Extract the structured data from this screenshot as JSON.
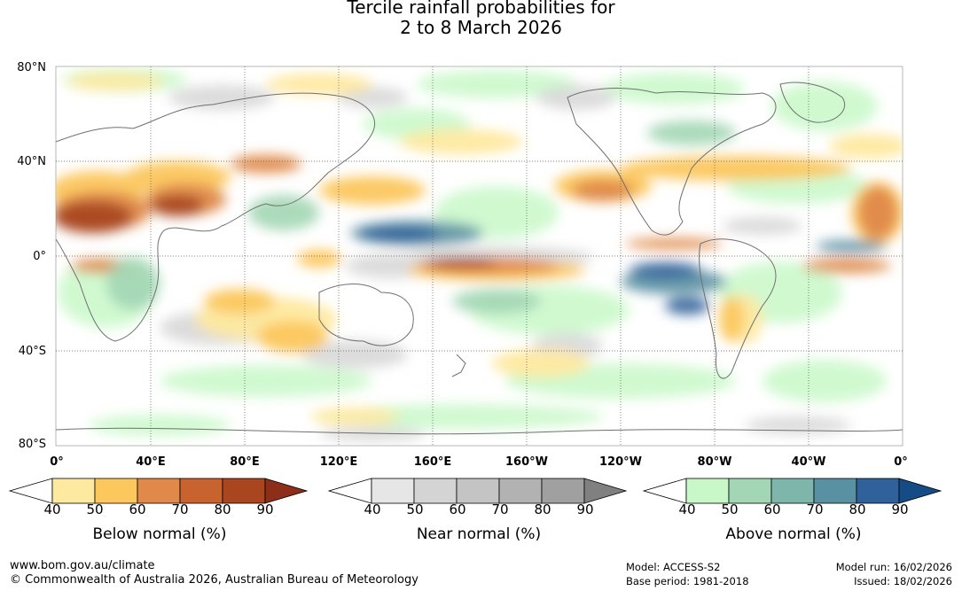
{
  "title": {
    "line1": "Tercile rainfall probabilities for",
    "line2": "2 to 8 March 2026"
  },
  "map": {
    "lat_labels": [
      "80°N",
      "40°N",
      "0°",
      "40°S",
      "80°S"
    ],
    "lon_labels": [
      "0°",
      "40°E",
      "80°E",
      "120°E",
      "160°E",
      "160°W",
      "120°W",
      "80°W",
      "40°W",
      "0°"
    ]
  },
  "colorbars": [
    {
      "title": "Below normal (%)",
      "ticks": [
        "40",
        "50",
        "60",
        "70",
        "80",
        "90"
      ],
      "colors": [
        "#ffffff",
        "#fee9a0",
        "#fcc75c",
        "#e0894a",
        "#c8622f",
        "#a9461f",
        "#8c2e1a"
      ]
    },
    {
      "title": "Near normal (%)",
      "ticks": [
        "40",
        "50",
        "60",
        "70",
        "80",
        "90"
      ],
      "colors": [
        "#ffffff",
        "#e6e6e6",
        "#d4d4d4",
        "#c4c4c4",
        "#b2b2b2",
        "#a0a0a0",
        "#808080"
      ]
    },
    {
      "title": "Above normal (%)",
      "ticks": [
        "40",
        "50",
        "60",
        "70",
        "80",
        "90"
      ],
      "colors": [
        "#ffffff",
        "#c8f8c8",
        "#a2d6b4",
        "#7fb6ac",
        "#5a91a2",
        "#30619a",
        "#154c86"
      ]
    }
  ],
  "footer": {
    "website": "www.bom.gov.au/climate",
    "copyright": "© Commonwealth of Australia 2026, Australian Bureau of Meteorology",
    "model": "Model: ACCESS-S2",
    "base_period": "Base period: 1981-2018",
    "model_run": "Model run: 16/02/2026",
    "issued": "Issued: 18/02/2026"
  }
}
